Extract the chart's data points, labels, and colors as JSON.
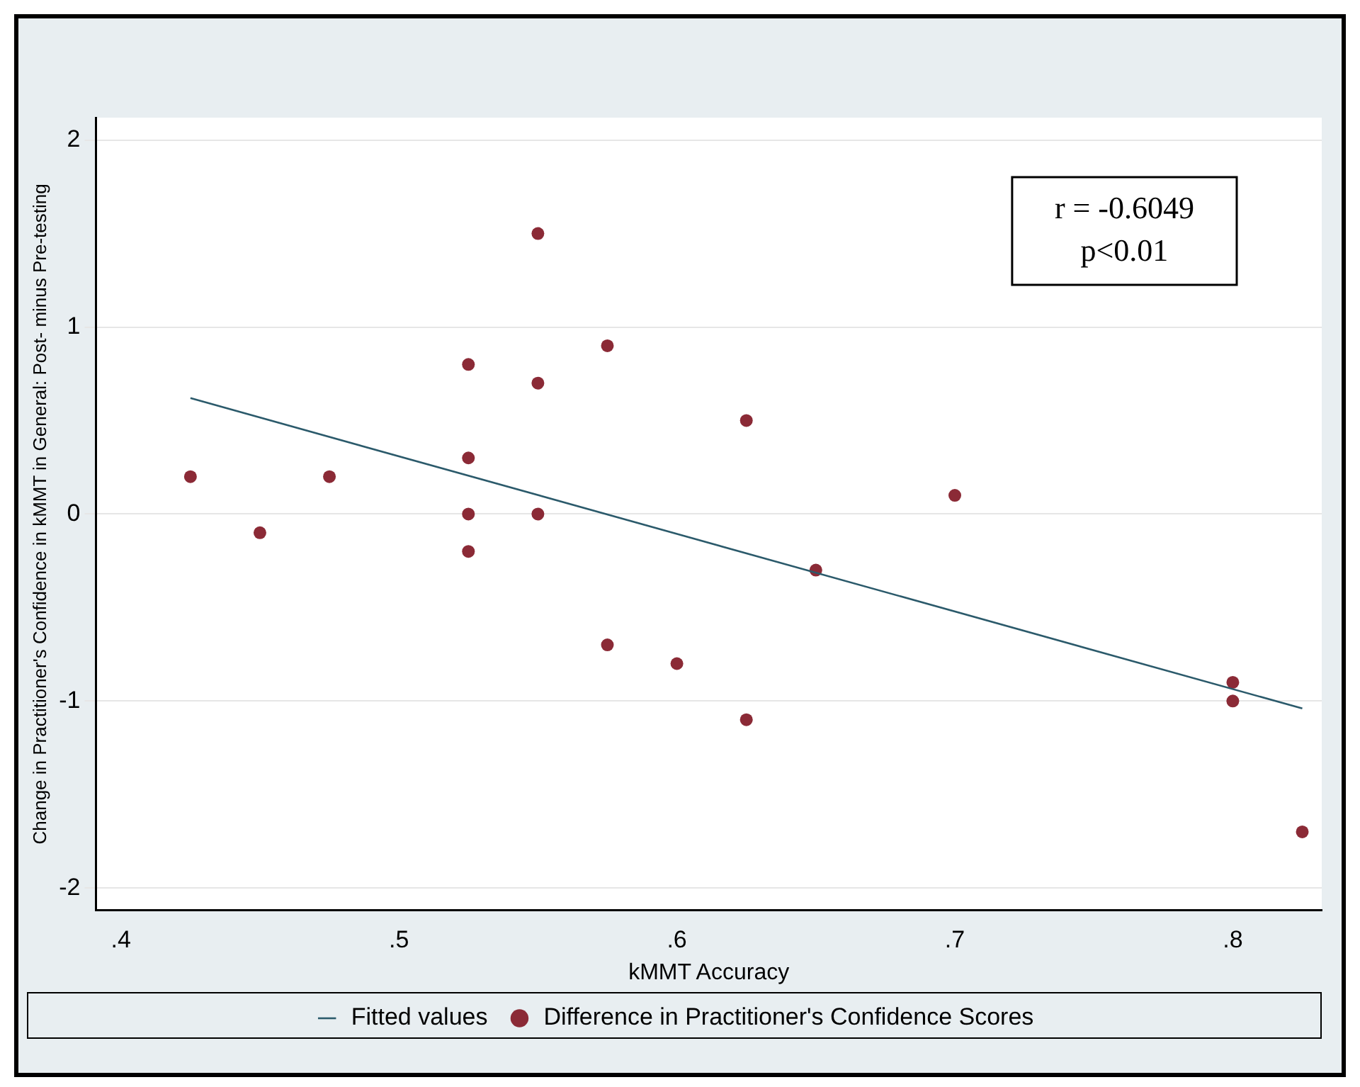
{
  "chart_data": {
    "type": "scatter",
    "xlabel": "kMMT Accuracy",
    "ylabel": "Change in Practitioner's Confidence in kMMT in General: Post- minus Pre-testing",
    "xlim": [
      0.391,
      0.832
    ],
    "xticks": [
      {
        "value": 0.4,
        "label": ".4"
      },
      {
        "value": 0.5,
        "label": ".5"
      },
      {
        "value": 0.6,
        "label": ".6"
      },
      {
        "value": 0.7,
        "label": ".7"
      },
      {
        "value": 0.8,
        "label": ".8"
      }
    ],
    "ylim": [
      -2.12,
      2.12
    ],
    "yticks": [
      -2,
      -1,
      0,
      1,
      2
    ],
    "grid": "y",
    "legend": "bottom",
    "annotations": [
      "r = -0.6049",
      "p<0.01"
    ],
    "series": [
      {
        "name": "Fitted values",
        "type": "line",
        "marker": "none",
        "line_style": "solid",
        "color": "#2b5a6b",
        "x": [
          0.425,
          0.825
        ],
        "values": [
          0.62,
          -1.04
        ]
      },
      {
        "name": "Difference in Practitioner's Confidence Scores",
        "marker": "circle",
        "color": "#8b2a36",
        "x": [
          0.425,
          0.45,
          0.475,
          0.525,
          0.525,
          0.525,
          0.525,
          0.55,
          0.55,
          0.55,
          0.575,
          0.575,
          0.6,
          0.625,
          0.625,
          0.65,
          0.7,
          0.8,
          0.8,
          0.825
        ],
        "values": [
          0.2,
          -0.1,
          0.2,
          0.8,
          0.3,
          0,
          -0.2,
          1.5,
          0.7,
          0,
          0.9,
          -0.7,
          -0.8,
          0.5,
          -1.1,
          -0.3,
          0.1,
          -0.9,
          -1.0,
          -1.7
        ]
      }
    ]
  }
}
